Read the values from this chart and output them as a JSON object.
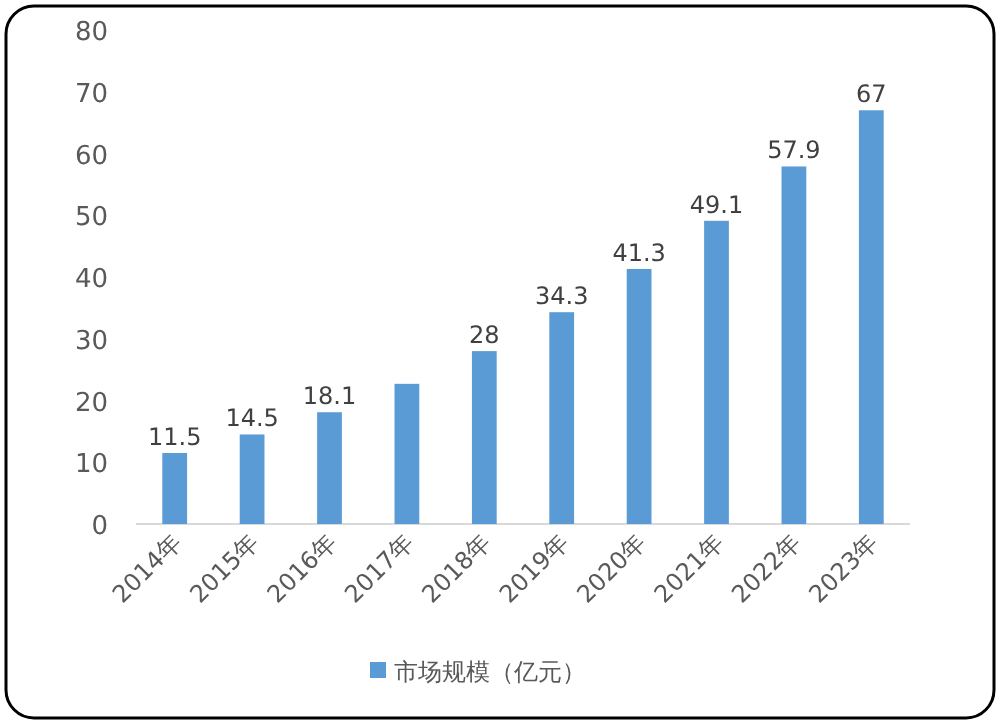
{
  "chart_data": {
    "type": "bar",
    "categories": [
      "2014年",
      "2015年",
      "2016年",
      "2017年",
      "2018年",
      "2019年",
      "2020年",
      "2021年",
      "2022年",
      "2023年"
    ],
    "series": [
      {
        "name": "市场规模（亿元）",
        "color": "#5b9bd5",
        "values": [
          11.5,
          14.5,
          18.1,
          22.7,
          28,
          34.3,
          41.3,
          49.1,
          57.9,
          67
        ]
      }
    ],
    "value_labels": [
      "11.5",
      "14.5",
      "18.1",
      null,
      "28",
      "34.3",
      "41.3",
      "49.1",
      "57.9",
      "67"
    ],
    "ylim": [
      0,
      80
    ],
    "yticks": [
      0,
      10,
      20,
      30,
      40,
      50,
      60,
      70,
      80
    ],
    "grid": false,
    "legend": "bottom"
  }
}
